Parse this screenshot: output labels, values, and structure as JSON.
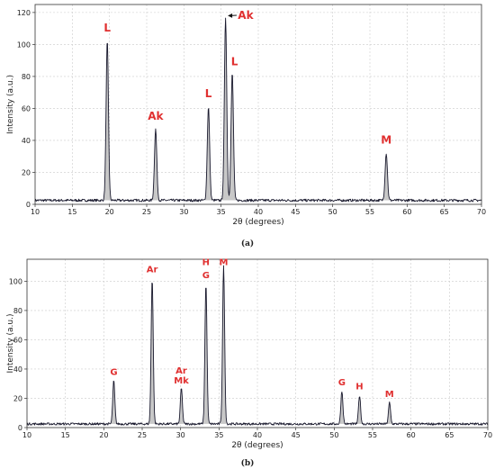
{
  "chart_data": [
    {
      "type": "line",
      "panel_label": "(a)",
      "xlabel": "2θ (degrees)",
      "ylabel": "Intensity (a.u.)",
      "xlim": [
        10,
        70
      ],
      "ylim": [
        0,
        125
      ],
      "xticks": [
        10,
        15,
        20,
        25,
        30,
        35,
        40,
        45,
        50,
        55,
        60,
        65,
        70
      ],
      "yticks": [
        0,
        20,
        40,
        60,
        80,
        100,
        120
      ],
      "grid": true,
      "baseline": 2.5,
      "peaks": [
        {
          "x": 19.7,
          "y": 102
        },
        {
          "x": 26.2,
          "y": 47
        },
        {
          "x": 33.3,
          "y": 61
        },
        {
          "x": 35.6,
          "y": 117
        },
        {
          "x": 36.5,
          "y": 82
        },
        {
          "x": 57.2,
          "y": 32
        }
      ],
      "annotations": [
        {
          "text": "L",
          "x": 19.7,
          "y": 108
        },
        {
          "text": "Ak",
          "x": 26.2,
          "y": 53
        },
        {
          "text": "L",
          "x": 33.3,
          "y": 67
        },
        {
          "text": "Ak",
          "x": 38.3,
          "y": 116,
          "arrow_to": {
            "x": 35.9,
            "y": 118
          }
        },
        {
          "text": "L",
          "x": 36.8,
          "y": 87
        },
        {
          "text": "M",
          "x": 57.2,
          "y": 38
        }
      ]
    },
    {
      "type": "line",
      "panel_label": "(b)",
      "xlabel": "2θ (degrees)",
      "ylabel": "Intensity (a.u.)",
      "xlim": [
        10,
        70
      ],
      "ylim": [
        0,
        115
      ],
      "xticks": [
        10,
        15,
        20,
        25,
        30,
        35,
        40,
        45,
        50,
        55,
        60,
        65,
        70
      ],
      "yticks": [
        0,
        20,
        40,
        60,
        80,
        100
      ],
      "grid": true,
      "baseline": 2.5,
      "peaks": [
        {
          "x": 21.3,
          "y": 32
        },
        {
          "x": 26.3,
          "y": 102
        },
        {
          "x": 30.1,
          "y": 27
        },
        {
          "x": 33.3,
          "y": 98
        },
        {
          "x": 35.6,
          "y": 110
        },
        {
          "x": 51.0,
          "y": 25
        },
        {
          "x": 53.3,
          "y": 22
        },
        {
          "x": 57.2,
          "y": 17
        }
      ],
      "annotations": [
        {
          "text": "G",
          "x": 21.3,
          "y": 36
        },
        {
          "text": "Ar",
          "x": 26.3,
          "y": 106
        },
        {
          "text": "Ar",
          "x": 30.1,
          "y": 37
        },
        {
          "text": "Mk",
          "x": 30.1,
          "y": 30
        },
        {
          "text": "H",
          "x": 33.3,
          "y": 111
        },
        {
          "text": "G",
          "x": 33.3,
          "y": 102
        },
        {
          "text": "M",
          "x": 35.6,
          "y": 111
        },
        {
          "text": "G",
          "x": 51.0,
          "y": 29
        },
        {
          "text": "H",
          "x": 53.3,
          "y": 26
        },
        {
          "text": "M",
          "x": 57.2,
          "y": 21
        }
      ]
    }
  ],
  "colors": {
    "line": "#1a1a2e",
    "fill": "#c8c8c8",
    "annotation": "#e03030",
    "grid": "#cccccc"
  }
}
